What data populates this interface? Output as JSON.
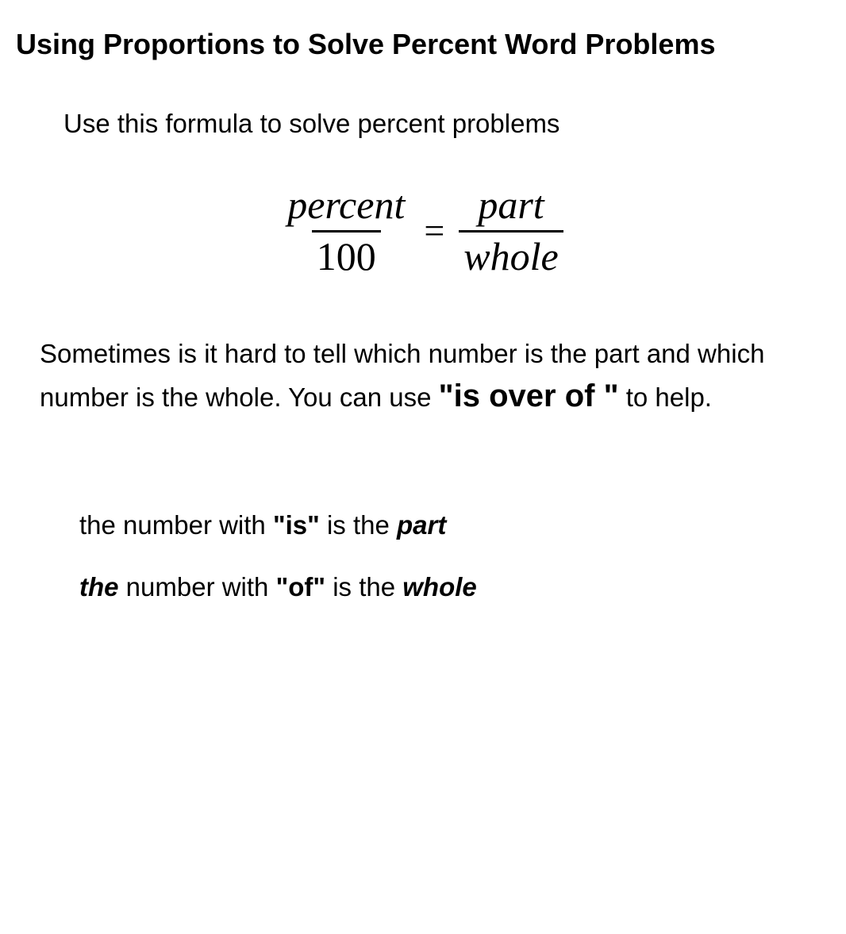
{
  "title": "Using Proportions to Solve Percent Word Problems",
  "intro": "Use this formula to solve percent problems",
  "formula": {
    "left_num": "percent",
    "left_den": "100",
    "equals": "=",
    "right_num": "part",
    "right_den": "whole"
  },
  "para": {
    "t1": "Sometimes is it hard to tell which number is the ",
    "box1": "☐",
    "t2": "part and which number is the whole.  You can ",
    "box2": "☐",
    "t3": "use ",
    "emph": "\"is over of \"",
    "t4": " to help."
  },
  "rule1": {
    "a": "the number with ",
    "b": "\"is\"",
    "c": " is the ",
    "d": "part"
  },
  "rule2": {
    "a": "the",
    "b": " number with ",
    "c": "\"of\"",
    "d": " is the ",
    "e": "whole"
  },
  "colors": {
    "text": "#000000",
    "background": "#ffffff"
  },
  "fonts": {
    "body": "Arial",
    "formula": "Times New Roman"
  }
}
